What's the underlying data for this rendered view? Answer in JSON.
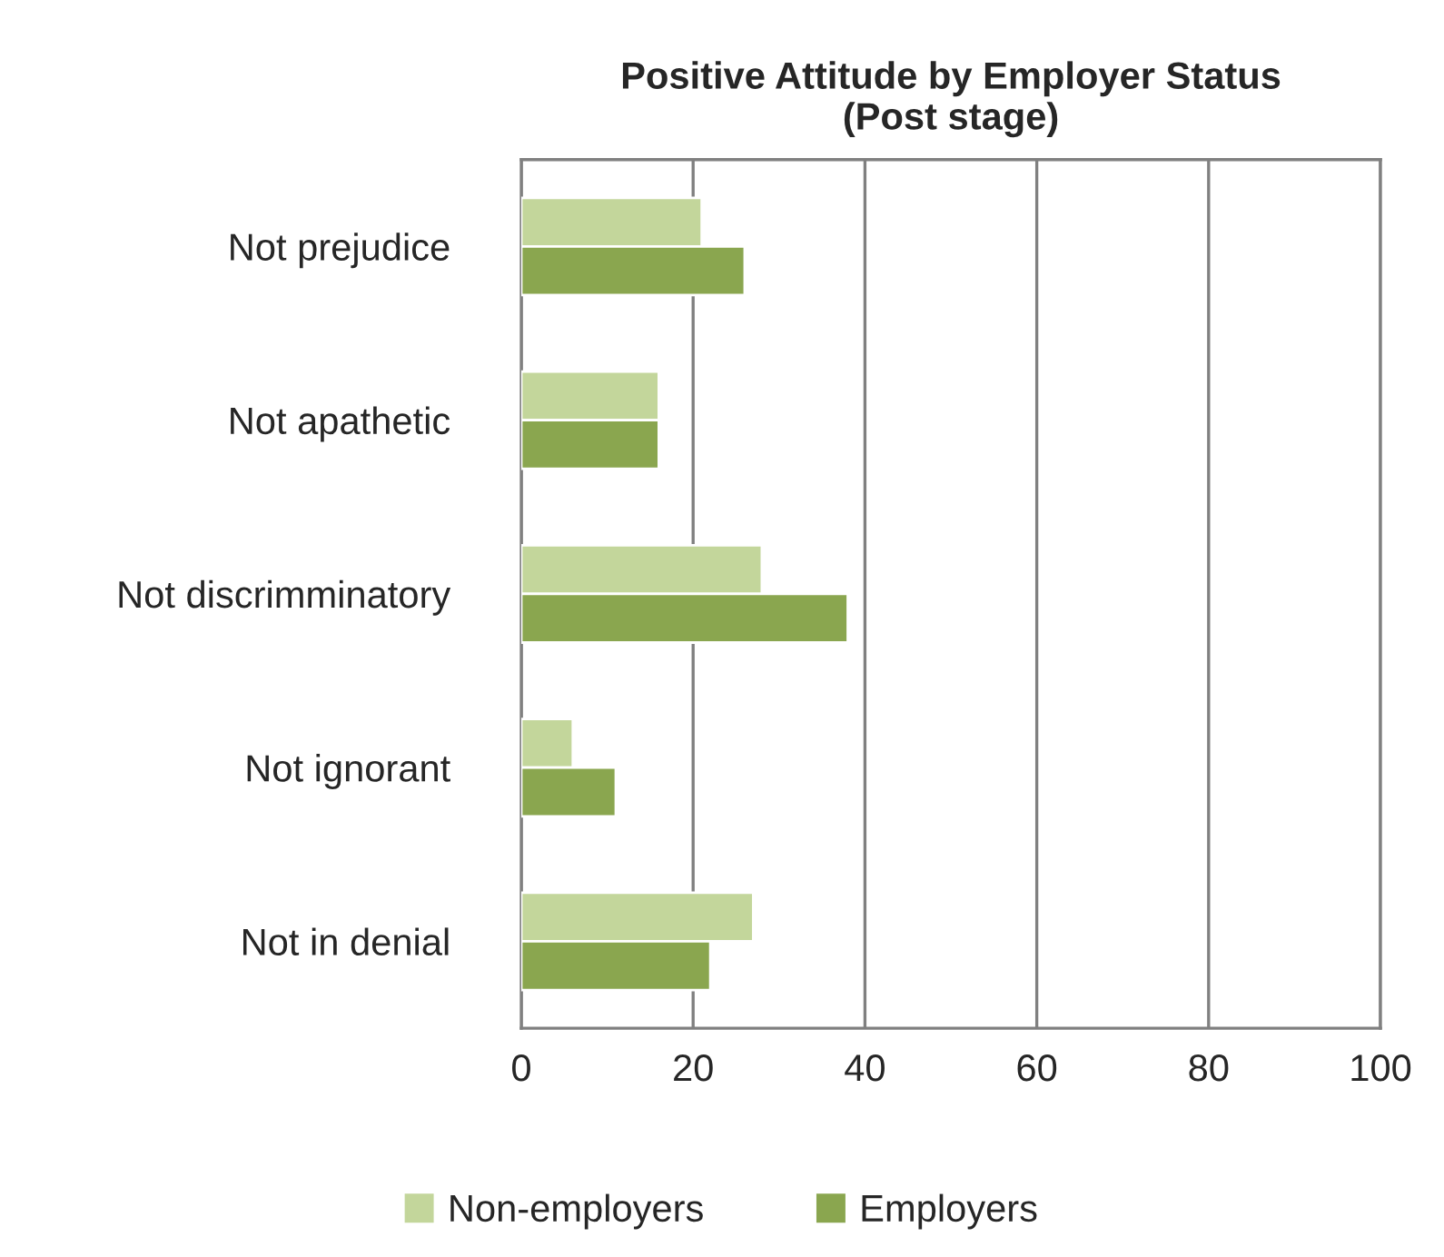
{
  "chart_data": {
    "type": "bar",
    "orientation": "horizontal",
    "title": "Positive Attitude by Employer Status\n(Post stage)",
    "categories": [
      "Not prejudice",
      "Not apathetic",
      "Not discrimminatory",
      "Not ignorant",
      "Not in denial"
    ],
    "series": [
      {
        "name": "Non-employers",
        "color": "#c3d69b",
        "values": [
          21,
          16,
          28,
          6,
          27
        ]
      },
      {
        "name": "Employers",
        "color": "#8aa64f",
        "values": [
          26,
          16,
          38,
          11,
          22
        ]
      }
    ],
    "xlim": [
      0,
      100
    ],
    "xticks": [
      0,
      20,
      40,
      60,
      80,
      100
    ],
    "grid": "x",
    "legend": "bottom"
  }
}
